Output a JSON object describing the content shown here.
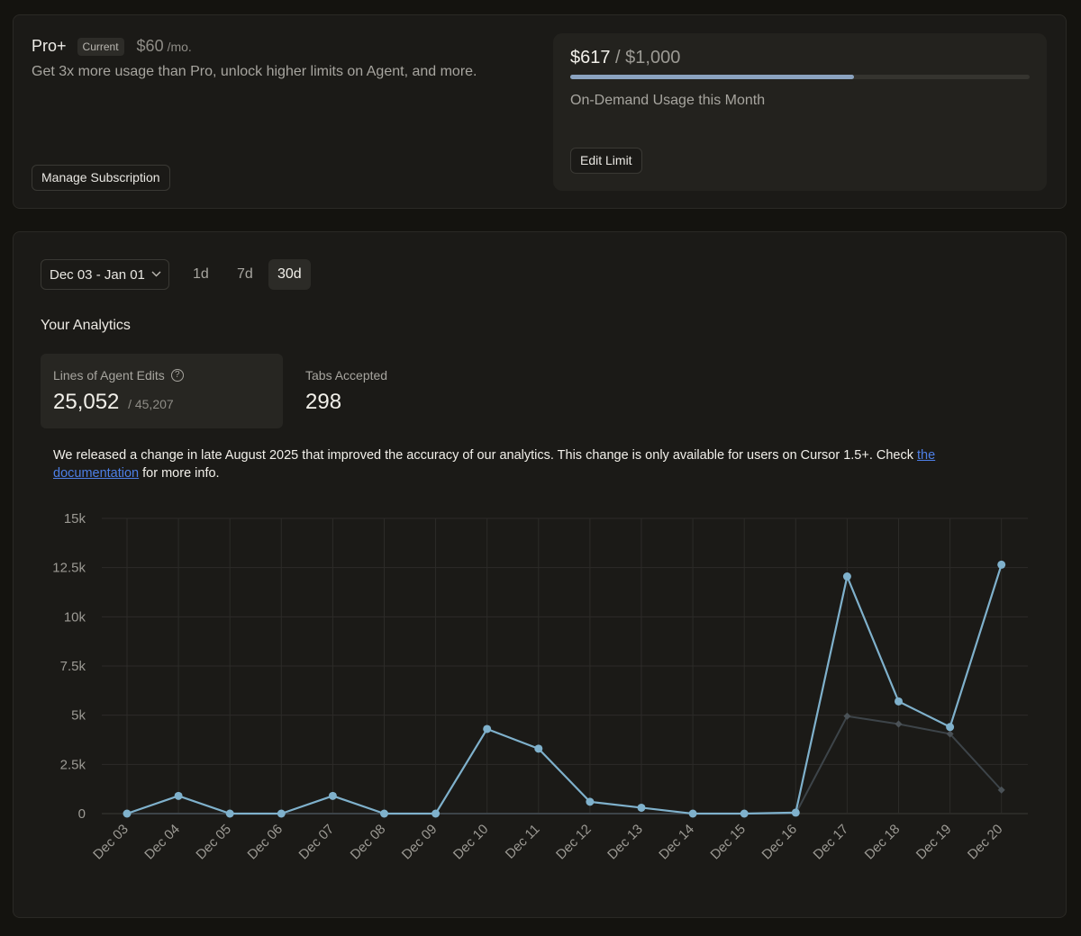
{
  "plan": {
    "name": "Pro+",
    "badge": "Current",
    "price": "$60",
    "price_unit": "/mo.",
    "description": "Get 3x more usage than Pro, unlock higher limits on Agent, and more.",
    "manage_label": "Manage Subscription"
  },
  "usage": {
    "amount": "$617",
    "limit": " / $1,000",
    "progress_fraction": 0.617,
    "label": "On-Demand Usage this Month",
    "edit_label": "Edit Limit"
  },
  "analytics": {
    "date_range": "Dec 03 - Jan 01",
    "tabs": [
      {
        "label": "1d",
        "active": false
      },
      {
        "label": "7d",
        "active": false
      },
      {
        "label": "30d",
        "active": true
      }
    ],
    "title": "Your Analytics",
    "stats": {
      "agent_label": "Lines of Agent Edits",
      "agent_value": "25,052",
      "agent_total": "/ 45,207",
      "tabs_label": "Tabs Accepted",
      "tabs_value": "298"
    },
    "notice": {
      "text": "We released a change in late August 2025 that improved the accuracy of our analytics. This change is only available for users on Cursor 1.5+. Check ",
      "link": "the documentation",
      "suffix": " for more info."
    }
  },
  "colors": {
    "accepted": "#7fb1cc",
    "suggested": "#3d4449"
  },
  "chart_data": {
    "type": "line",
    "categories": [
      "Dec 03",
      "Dec 04",
      "Dec 05",
      "Dec 06",
      "Dec 07",
      "Dec 08",
      "Dec 09",
      "Dec 10",
      "Dec 11",
      "Dec 12",
      "Dec 13",
      "Dec 14",
      "Dec 15",
      "Dec 16",
      "Dec 17",
      "Dec 18",
      "Dec 19",
      "Dec 20"
    ],
    "yticks": [
      "0",
      "2.5k",
      "5k",
      "7.5k",
      "10k",
      "12.5k",
      "15k"
    ],
    "ylim": [
      0,
      15000
    ],
    "grid": true,
    "series": [
      {
        "values": [
          0,
          0,
          0,
          0,
          0,
          0,
          0,
          0,
          0,
          0,
          0,
          0,
          0,
          0,
          4950,
          4550,
          4050,
          1200
        ]
      },
      {
        "values": [
          0,
          900,
          0,
          0,
          900,
          0,
          0,
          4300,
          3300,
          600,
          300,
          0,
          0,
          50,
          12050,
          5700,
          4400,
          12650
        ]
      }
    ]
  }
}
